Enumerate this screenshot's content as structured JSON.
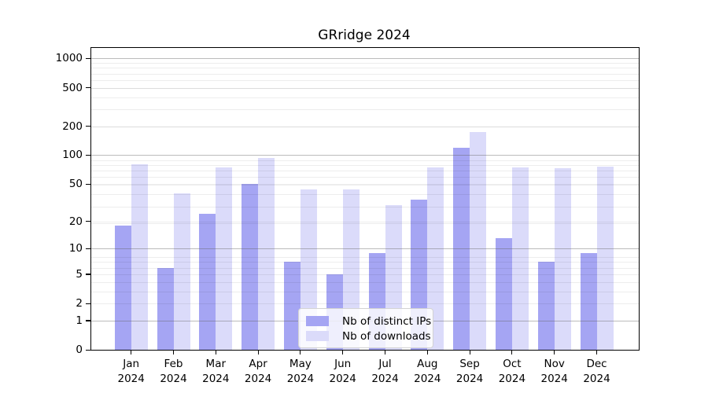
{
  "title": "GRridge 2024",
  "legend": {
    "items": [
      {
        "label": "Nb of distinct IPs"
      },
      {
        "label": "Nb of downloads"
      }
    ]
  },
  "chart_data": {
    "type": "bar",
    "title": "GRridge 2024",
    "yscale": "log10(value+1)",
    "ylim": [
      0,
      1000
    ],
    "yticks": [
      0,
      1,
      2,
      5,
      10,
      20,
      50,
      100,
      200,
      500,
      1000
    ],
    "grid": true,
    "legend_position": "inside-bottom-center",
    "categories": [
      "Jan",
      "Feb",
      "Mar",
      "Apr",
      "May",
      "Jun",
      "Jul",
      "Aug",
      "Sep",
      "Oct",
      "Nov",
      "Dec"
    ],
    "year_label": "2024",
    "series": [
      {
        "name": "Nb of distinct IPs",
        "color": "#a5a5f3",
        "values": [
          18,
          6,
          24,
          50,
          7,
          5,
          9,
          34,
          120,
          13,
          7,
          9
        ]
      },
      {
        "name": "Nb of downloads",
        "color": "#dbdbfa",
        "values": [
          80,
          40,
          74,
          93,
          44,
          44,
          30,
          75,
          175,
          74,
          73,
          76
        ]
      }
    ]
  }
}
